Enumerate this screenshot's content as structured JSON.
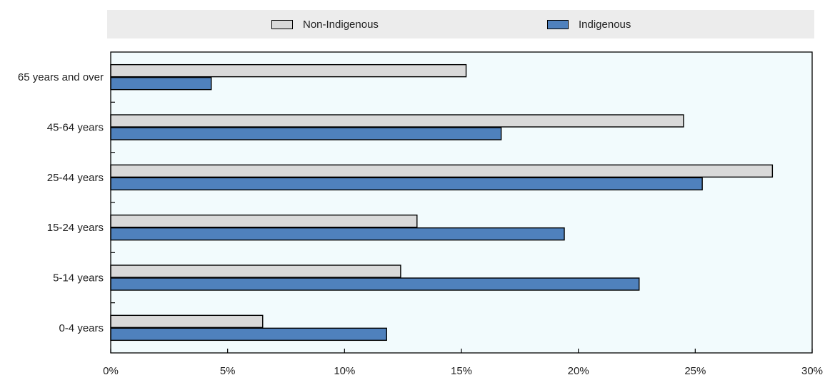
{
  "chart_data": {
    "type": "bar",
    "orientation": "horizontal",
    "categories": [
      "65 years and over",
      "45-64 years",
      "25-44 years",
      "15-24 years",
      "5-14 years",
      "0-4 years"
    ],
    "series": [
      {
        "name": "Non-Indigenous",
        "color": "#d9d9d9",
        "values": [
          15.2,
          24.5,
          28.3,
          13.1,
          12.4,
          6.5
        ]
      },
      {
        "name": "Indigenous",
        "color": "#4f81bd",
        "values": [
          4.3,
          16.7,
          25.3,
          19.4,
          22.6,
          11.8
        ]
      }
    ],
    "xlim": [
      0,
      30
    ],
    "xticks": [
      "0%",
      "5%",
      "10%",
      "15%",
      "20%",
      "25%",
      "30%"
    ],
    "legend_position": "top",
    "plot_background": "#f2fbfd",
    "grid": false
  }
}
